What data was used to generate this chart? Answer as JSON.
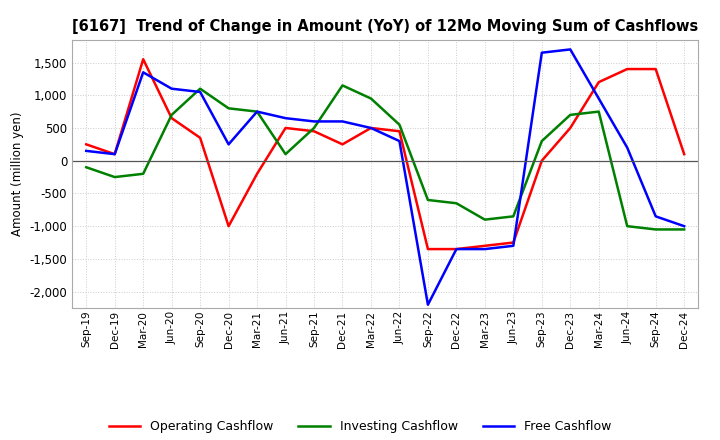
{
  "title": "[6167]  Trend of Change in Amount (YoY) of 12Mo Moving Sum of Cashflows",
  "ylabel": "Amount (million yen)",
  "x_labels": [
    "Sep-19",
    "Dec-19",
    "Mar-20",
    "Jun-20",
    "Sep-20",
    "Dec-20",
    "Mar-21",
    "Jun-21",
    "Sep-21",
    "Dec-21",
    "Mar-22",
    "Jun-22",
    "Sep-22",
    "Dec-22",
    "Mar-23",
    "Jun-23",
    "Sep-23",
    "Dec-23",
    "Mar-24",
    "Jun-24",
    "Sep-24",
    "Dec-24"
  ],
  "operating": [
    250,
    100,
    1550,
    650,
    350,
    -1000,
    -200,
    500,
    450,
    250,
    500,
    450,
    -1350,
    -1350,
    -1300,
    -1250,
    0,
    500,
    1200,
    1400,
    1400,
    100
  ],
  "investing": [
    -100,
    -250,
    -200,
    700,
    1100,
    800,
    750,
    100,
    500,
    1150,
    950,
    550,
    -600,
    -650,
    -900,
    -850,
    300,
    700,
    750,
    -1000,
    -1050,
    -1050
  ],
  "free": [
    150,
    100,
    1350,
    1100,
    1050,
    250,
    750,
    650,
    600,
    600,
    500,
    300,
    -2200,
    -1350,
    -1350,
    -1300,
    1650,
    1700,
    950,
    200,
    -850,
    -1000
  ],
  "operating_color": "#ff0000",
  "investing_color": "#008000",
  "free_color": "#0000ff",
  "ylim": [
    -2250,
    1850
  ],
  "yticks": [
    -2000,
    -1500,
    -1000,
    -500,
    0,
    500,
    1000,
    1500
  ],
  "background_color": "#ffffff",
  "grid_color": "#cccccc"
}
